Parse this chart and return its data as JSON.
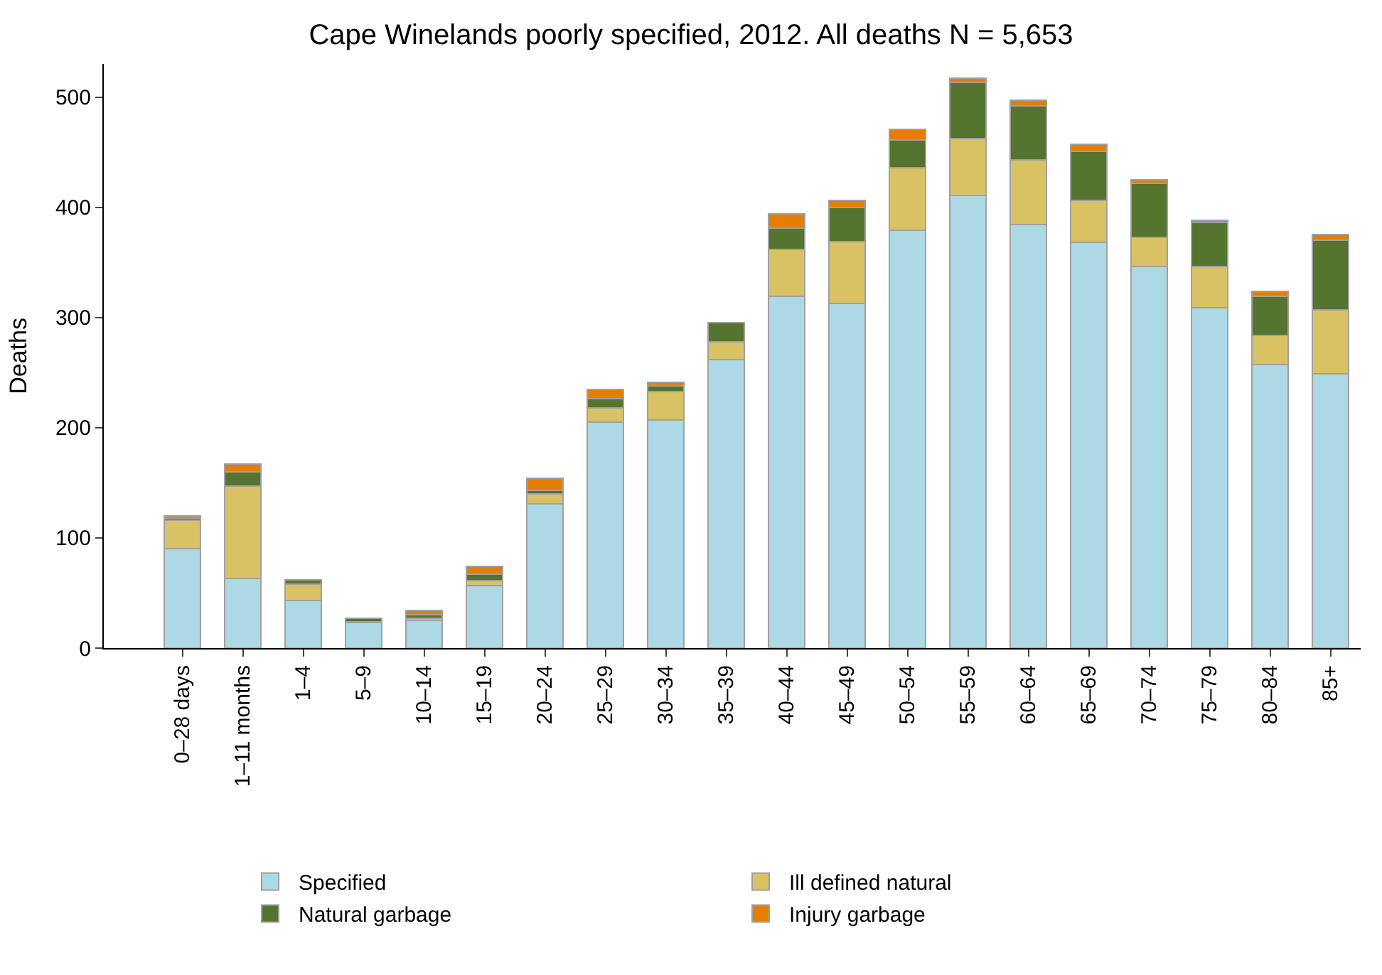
{
  "chart_data": {
    "type": "bar",
    "stacked": true,
    "title": "Cape Winelands poorly specified, 2012. All deaths N = 5,653",
    "ylabel": "Deaths",
    "categories": [
      "0–28 days",
      "1–11 months",
      "1–4",
      "5–9",
      "10–14",
      "15–19",
      "20–24",
      "25–29",
      "30–34",
      "35–39",
      "40–44",
      "45–49",
      "50–54",
      "55–59",
      "60–64",
      "65–69",
      "70–74",
      "75–79",
      "80–84",
      "85+"
    ],
    "series": [
      {
        "name": "Specified",
        "color": "#add8e6",
        "values": [
          90,
          63,
          43,
          23,
          25,
          57,
          131,
          205,
          207,
          262,
          319,
          313,
          379,
          411,
          384,
          368,
          346,
          309,
          257,
          249
        ]
      },
      {
        "name": "Ill defined natural",
        "color": "#d9c264",
        "values": [
          26,
          84,
          15,
          1,
          2,
          4,
          9,
          13,
          26,
          16,
          43,
          56,
          57,
          51,
          59,
          38,
          27,
          37,
          27,
          58
        ]
      },
      {
        "name": "Natural garbage",
        "color": "#55742f",
        "values": [
          2,
          13,
          4,
          3,
          3,
          6,
          3,
          8,
          5,
          17,
          19,
          31,
          25,
          51,
          49,
          45,
          49,
          40,
          35,
          63
        ]
      },
      {
        "name": "Injury garbage",
        "color": "#e57e00",
        "values": [
          2,
          7,
          0,
          0,
          4,
          7,
          11,
          9,
          3,
          0,
          13,
          6,
          10,
          4,
          5,
          6,
          3,
          2,
          5,
          5
        ]
      }
    ],
    "ylim": [
      0,
      530
    ],
    "yticks": [
      0,
      100,
      200,
      300,
      400,
      500
    ],
    "legend": "bottom"
  }
}
